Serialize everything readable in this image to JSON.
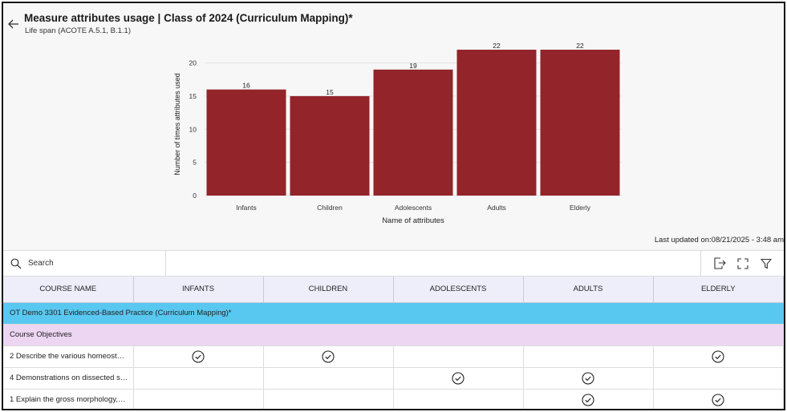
{
  "header": {
    "title": "Measure attributes usage | Class of 2024 (Curriculum Mapping)*",
    "subtitle": "Life span (ACOTE A.5.1, B.1.1)"
  },
  "chart_data": {
    "type": "bar",
    "categories": [
      "Infants",
      "Children",
      "Adolescents",
      "Adults",
      "Elderly"
    ],
    "values": [
      16,
      15,
      19,
      22,
      22
    ],
    "data_labels": [
      "16",
      "15",
      "19",
      "22",
      "22"
    ],
    "xlabel": "Name of attributes",
    "ylabel": "Number of times attributes used",
    "ylim": [
      0,
      22
    ],
    "yticks": [
      0,
      5,
      10,
      15,
      20
    ],
    "ytick_labels": [
      "0",
      "5",
      "10",
      "15",
      "20"
    ],
    "bar_color": "#93242a",
    "grid": true,
    "legend": "none"
  },
  "last_updated": "Last updated on:08/21/2025 - 3:48 am",
  "toolbar": {
    "search_placeholder": "Search",
    "icons": [
      "search-icon",
      "export-icon",
      "expand-icon",
      "filter-icon"
    ]
  },
  "table": {
    "columns": [
      "COURSE NAME",
      "INFANTS",
      "CHILDREN",
      "ADOLESCENTS",
      "ADULTS",
      "ELDERLY"
    ],
    "course_group": "OT Demo 3301 Evidenced-Based Practice (Curriculum Mapping)*",
    "objectives_group": "Course Objectives",
    "rows": [
      {
        "name": "2 Describe the various homeost…",
        "checks": [
          true,
          true,
          false,
          false,
          true
        ]
      },
      {
        "name": "4 Demonstrations on dissected s…",
        "checks": [
          false,
          false,
          true,
          true,
          false
        ]
      },
      {
        "name": "1 Explain the gross morphology,…",
        "checks": [
          false,
          false,
          false,
          true,
          true
        ]
      }
    ],
    "check_icon": "check-circle-icon"
  },
  "colors": {
    "course_group_bg": "#59c8f0",
    "objectives_group_bg": "#ecd6f2",
    "header_bg": "#eeeefb"
  }
}
